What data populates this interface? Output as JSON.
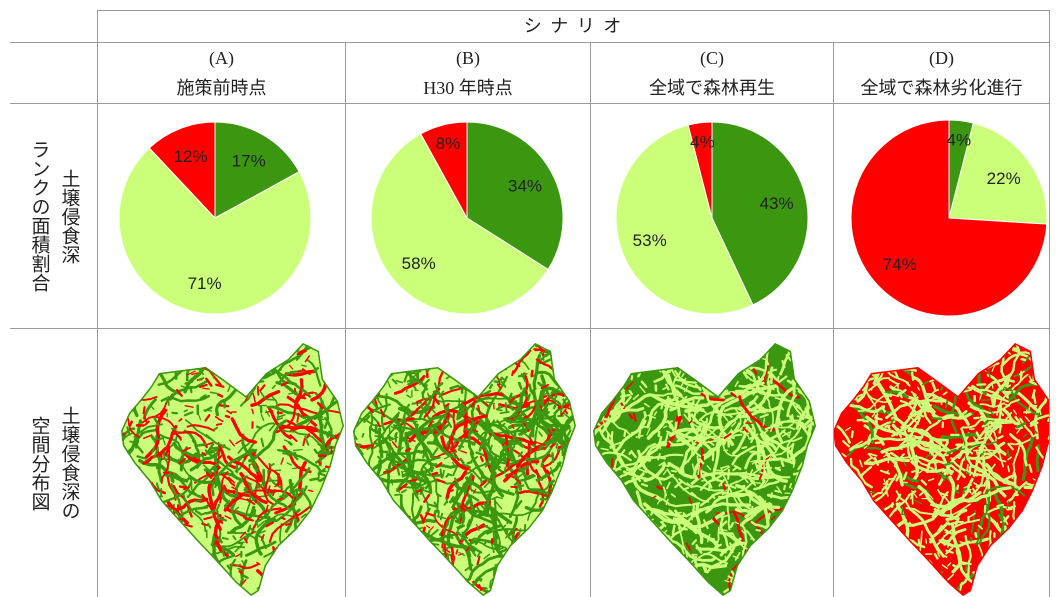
{
  "header": {
    "scenario": "シ ナ リ オ"
  },
  "columns": [
    {
      "letter": "(A)",
      "name": "施策前時点"
    },
    {
      "letter": "(B)",
      "name": "H30 年時点"
    },
    {
      "letter": "(C)",
      "name": "全域で森林再生"
    },
    {
      "letter": "(D)",
      "name": "全域で森林劣化進行"
    }
  ],
  "rows": {
    "pie_label": [
      "土壌侵食深",
      "ランクの面積割合"
    ],
    "map_label": [
      "土壌侵食深の",
      "空間分布図"
    ]
  },
  "chart_data": [
    {
      "type": "pie",
      "slices": [
        {
          "value": 17,
          "label": "17%",
          "color": "#3b970f"
        },
        {
          "value": 71,
          "label": "71%",
          "color": "#ccff79"
        },
        {
          "value": 12,
          "label": "12%",
          "color": "#ff0000"
        }
      ]
    },
    {
      "type": "pie",
      "slices": [
        {
          "value": 34,
          "label": "34%",
          "color": "#3b970f"
        },
        {
          "value": 58,
          "label": "58%",
          "color": "#ccff79"
        },
        {
          "value": 8,
          "label": "8%",
          "color": "#ff0000"
        }
      ]
    },
    {
      "type": "pie",
      "slices": [
        {
          "value": 43,
          "label": "43%",
          "color": "#3b970f"
        },
        {
          "value": 53,
          "label": "53%",
          "color": "#ccff79"
        },
        {
          "value": 4,
          "label": "4%",
          "color": "#ff0000"
        }
      ]
    },
    {
      "type": "pie",
      "slices": [
        {
          "value": 4,
          "label": "4%",
          "color": "#3b970f"
        },
        {
          "value": 22,
          "label": "22%",
          "color": "#ccff79"
        },
        {
          "value": 74,
          "label": "74%",
          "color": "#ff0000"
        }
      ]
    }
  ]
}
